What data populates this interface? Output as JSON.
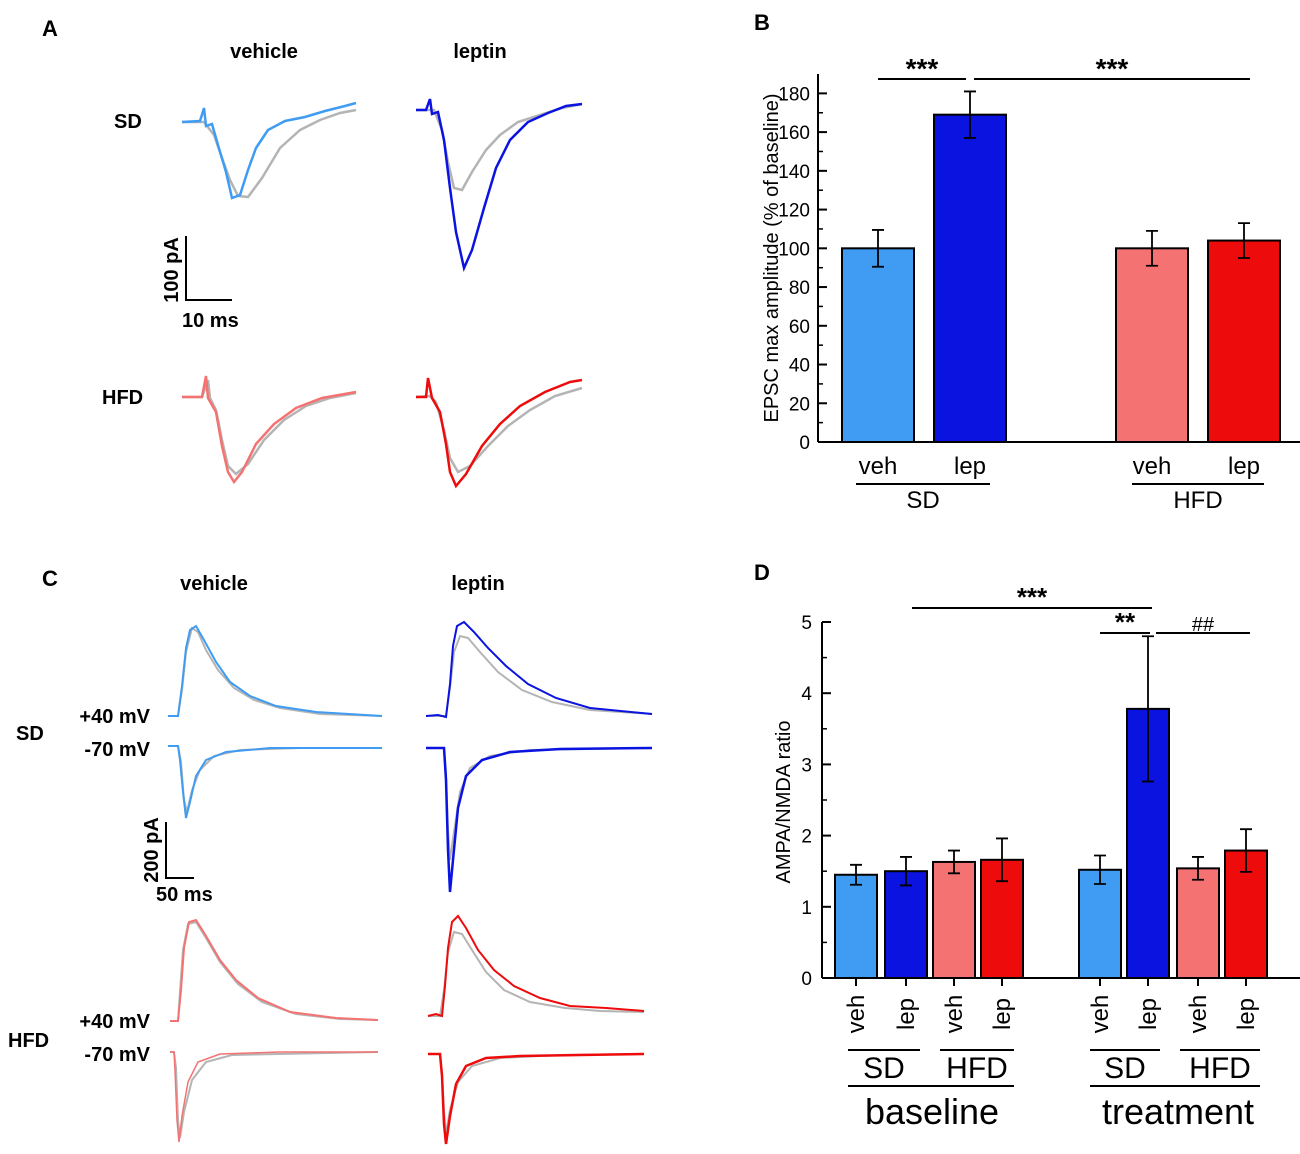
{
  "panel_letters": {
    "a": "A",
    "b": "B",
    "c": "C",
    "d": "D"
  },
  "colors": {
    "sd_veh": "#3f9cf2",
    "sd_lep": "#0a13e0",
    "hfd_veh": "#f47272",
    "hfd_lep": "#ee0b0b",
    "control_trace": "#b4b4b4"
  },
  "panel_a": {
    "col_vehicle": "vehicle",
    "col_leptin": "leptin",
    "row_sd": "SD",
    "row_hfd": "HFD",
    "scale_y": "100 pA",
    "scale_x": "10 ms"
  },
  "panel_c": {
    "col_vehicle": "vehicle",
    "col_leptin": "leptin",
    "row_sd": "SD",
    "row_hfd": "HFD",
    "sd_pos": "+40 mV",
    "sd_neg": "-70 mV",
    "hfd_pos": "+40 mV",
    "hfd_neg": "-70 mV",
    "scale_y": "200 pA",
    "scale_x": "50 ms"
  },
  "chart_data": [
    {
      "panel": "B",
      "type": "bar",
      "ylabel": "EPSC max amplitude (% of baseline)",
      "ylim": [
        0,
        190
      ],
      "yticks": [
        0,
        20,
        40,
        60,
        80,
        100,
        120,
        140,
        160,
        180
      ],
      "categories": [
        "veh",
        "lep",
        "veh",
        "lep"
      ],
      "groups": [
        "SD",
        "HFD"
      ],
      "values": [
        100,
        169,
        100,
        104
      ],
      "errors": [
        9.5,
        12,
        9,
        9
      ],
      "bar_colors": [
        "#3f9cf2",
        "#0a13e0",
        "#f47272",
        "#ee0b0b"
      ],
      "annotations": [
        {
          "text": "***",
          "from": 0,
          "to": 1
        },
        {
          "text": "***",
          "from": 1,
          "to": 3
        }
      ]
    },
    {
      "panel": "D",
      "type": "bar",
      "ylabel": "AMPA/NMDA ratio",
      "ylim": [
        0,
        5
      ],
      "yticks": [
        0,
        1,
        2,
        3,
        4,
        5
      ],
      "categories": [
        "veh",
        "lep",
        "veh",
        "lep",
        "veh",
        "lep",
        "veh",
        "lep"
      ],
      "subgroups": [
        "SD",
        "HFD",
        "SD",
        "HFD"
      ],
      "groups": [
        "baseline",
        "treatment"
      ],
      "values": [
        1.45,
        1.5,
        1.63,
        1.66,
        1.52,
        3.78,
        1.54,
        1.79
      ],
      "errors": [
        0.14,
        0.2,
        0.16,
        0.3,
        0.2,
        1.02,
        0.16,
        0.3
      ],
      "bar_colors": [
        "#3f9cf2",
        "#0a13e0",
        "#f47272",
        "#ee0b0b",
        "#3f9cf2",
        "#0a13e0",
        "#f47272",
        "#ee0b0b"
      ],
      "annotations": [
        {
          "text": "***",
          "from": 1,
          "to": 5
        },
        {
          "text": "**",
          "from": 4,
          "to": 5
        },
        {
          "text": "##",
          "from": 5,
          "to": 7
        }
      ]
    }
  ]
}
